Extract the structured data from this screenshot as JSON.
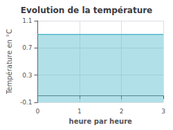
{
  "chart_data": {
    "type": "area",
    "title": "Evolution de la température",
    "xlabel": "heure par heure",
    "ylabel": "Température en °C",
    "x": [
      0,
      3
    ],
    "values": [
      0.9,
      0.9
    ],
    "color": "#55bbcc",
    "xlim": [
      0,
      3
    ],
    "xticks": [
      0,
      1,
      2,
      3
    ],
    "ylim": [
      -0.1,
      1.1
    ],
    "yticks": [
      -0.1,
      0.3,
      0.7,
      1.1
    ],
    "grid": true
  }
}
